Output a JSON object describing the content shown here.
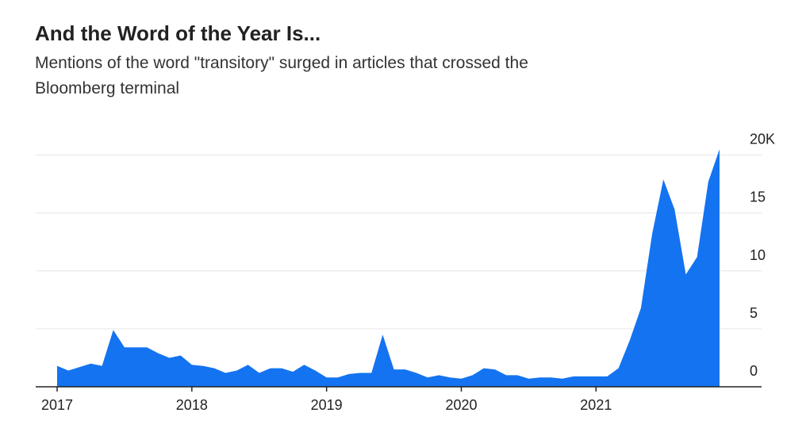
{
  "chart_data": {
    "type": "area",
    "title": "And the Word of the Year Is...",
    "subtitle_lines": [
      "Mentions of the word \"transitory\" surged in articles that crossed the",
      "Bloomberg terminal"
    ],
    "color": "#1473f0",
    "categories": [
      "2017",
      null,
      null,
      null,
      null,
      null,
      null,
      null,
      null,
      null,
      null,
      null,
      "2018",
      null,
      null,
      null,
      null,
      null,
      null,
      null,
      null,
      null,
      null,
      null,
      "2019",
      null,
      null,
      null,
      null,
      null,
      null,
      null,
      null,
      null,
      null,
      null,
      "2020",
      null,
      null,
      null,
      null,
      null,
      null,
      null,
      null,
      null,
      null,
      null,
      "2021",
      null,
      null,
      null,
      null,
      null,
      null,
      null,
      null,
      null,
      null,
      null
    ],
    "values": [
      1.8,
      1.4,
      1.7,
      2.0,
      1.8,
      4.9,
      3.4,
      3.4,
      3.4,
      2.9,
      2.5,
      2.7,
      1.9,
      1.8,
      1.6,
      1.2,
      1.4,
      1.9,
      1.2,
      1.6,
      1.6,
      1.3,
      1.9,
      1.4,
      0.8,
      0.8,
      1.1,
      1.2,
      1.2,
      4.5,
      1.5,
      1.5,
      1.2,
      0.8,
      1.0,
      0.8,
      0.7,
      1.0,
      1.6,
      1.5,
      1.0,
      1.0,
      0.7,
      0.8,
      0.8,
      0.7,
      0.9,
      0.9,
      0.9,
      0.9,
      1.6,
      4.0,
      6.8,
      13.2,
      17.9,
      15.3,
      9.7,
      11.2,
      17.7,
      20.5
    ],
    "ylim": [
      0,
      21
    ],
    "yticks": [
      0,
      5,
      10,
      15,
      {
        "value": 20,
        "label": "20K"
      }
    ],
    "grid": true
  }
}
